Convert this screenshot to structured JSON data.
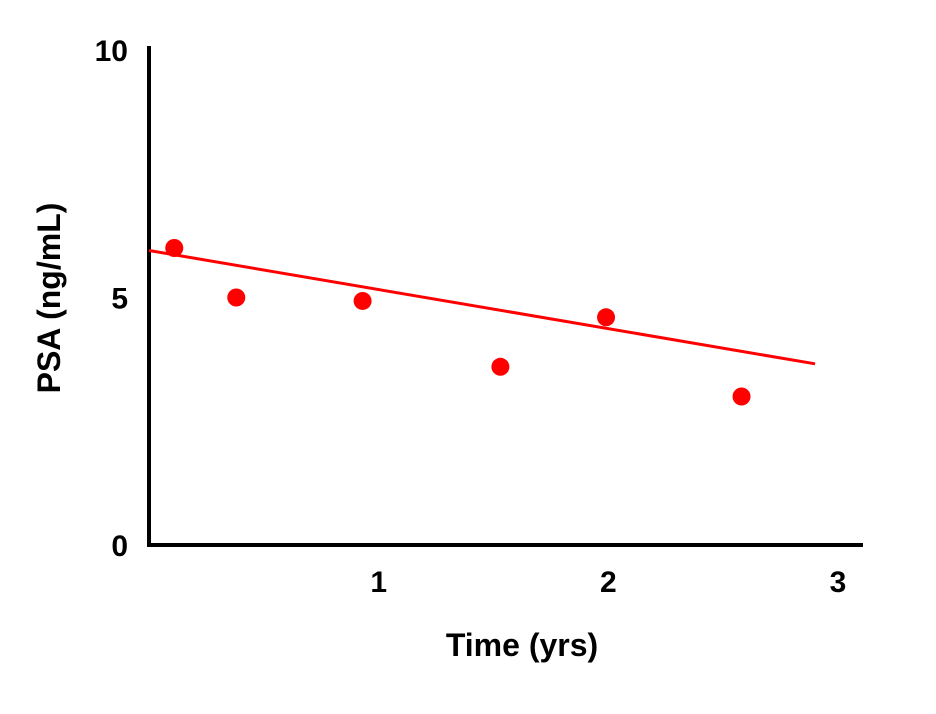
{
  "chart_data": {
    "type": "scatter",
    "title": "",
    "xlabel": "Time (yrs)",
    "ylabel": "PSA (ng/mL)",
    "xlim": [
      0,
      3
    ],
    "ylim": [
      0,
      10
    ],
    "x_ticks": [
      1,
      2,
      3
    ],
    "x_tick_labels": [
      "1",
      "2",
      "3"
    ],
    "y_ticks": [
      0,
      5,
      10
    ],
    "y_tick_labels": [
      "0",
      "5",
      "10"
    ],
    "grid": false,
    "legend": "none",
    "series": [
      {
        "values": [
          {
            "x": 0.11,
            "y": 6.0
          },
          {
            "x": 0.38,
            "y": 5.0
          },
          {
            "x": 0.93,
            "y": 4.93
          },
          {
            "x": 1.53,
            "y": 3.6
          },
          {
            "x": 1.99,
            "y": 4.6
          },
          {
            "x": 2.58,
            "y": 3.0
          }
        ]
      }
    ],
    "trendline": {
      "x": [
        0.0,
        2.9
      ],
      "y": [
        5.95,
        3.66
      ]
    },
    "colors": {
      "points": "#ff0000",
      "trendline": "#ff0000",
      "axes": "#000000"
    }
  }
}
